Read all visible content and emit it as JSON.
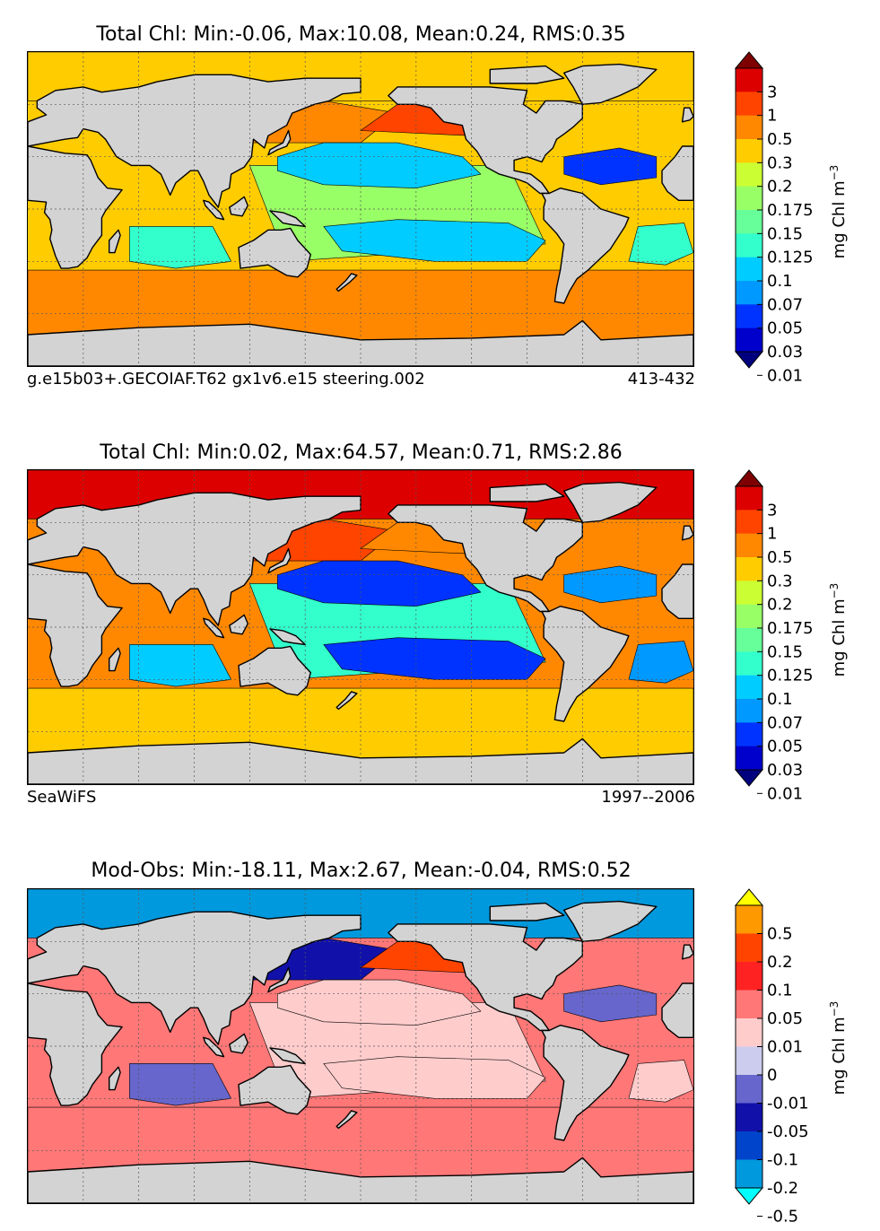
{
  "colors": {
    "land": "#d3d3d3",
    "chl_scale": [
      "#00007f",
      "#0000cc",
      "#0033ff",
      "#0099ff",
      "#00ccff",
      "#33ffcc",
      "#66ff99",
      "#99ff66",
      "#ccff33",
      "#ffcc00",
      "#ff8800",
      "#ff4400",
      "#dd0000",
      "#7f0000"
    ],
    "diff_scale": [
      "#00ffff",
      "#0099dd",
      "#0044cc",
      "#1111aa",
      "#6666cc",
      "#ccccee",
      "#ffcccc",
      "#ff7777",
      "#ff2222",
      "#ff4400",
      "#ff9900",
      "#ffff00"
    ]
  },
  "chart_data": [
    {
      "type": "heatmap",
      "title": "Total Chl: Min:-0.06, Max:10.08, Mean:0.24, RMS:0.35",
      "left_caption": "g.e15b03+.GECOIAF.T62 gx1v6.e15 steering.002",
      "right_caption": "413-432",
      "colorbar_label": "mg Chl m",
      "colorbar_label_exp": "−3",
      "colorbar_ticks": [
        "3",
        "1",
        "0.5",
        "0.3",
        "0.2",
        "0.175",
        "0.15",
        "0.125",
        "0.1",
        "0.07",
        "0.05",
        "0.03",
        "0.01"
      ],
      "field": {
        "nw_pacific": 0.3,
        "ne_pacific": 0.5,
        "n_pacific_gyre": 0.07,
        "equatorial_pacific": 0.15,
        "s_pacific_gyre": 0.07,
        "n_atlantic_gyre": 0.03,
        "s_atlantic_gyre": 0.1,
        "indian_gyre": 0.1,
        "southern_ocean": 0.3,
        "arctic": 0.2
      }
    },
    {
      "type": "heatmap",
      "title": "Total Chl: Min:0.02, Max:64.57, Mean:0.71, RMS:2.86",
      "left_caption": "SeaWiFS",
      "right_caption": "1997--2006",
      "colorbar_label": "mg Chl m",
      "colorbar_label_exp": "−3",
      "colorbar_ticks": [
        "3",
        "1",
        "0.5",
        "0.3",
        "0.2",
        "0.175",
        "0.15",
        "0.125",
        "0.1",
        "0.07",
        "0.05",
        "0.03",
        "0.01"
      ],
      "field": {
        "nw_pacific": 0.5,
        "ne_pacific": 0.3,
        "n_pacific_gyre": 0.03,
        "equatorial_pacific": 0.1,
        "s_pacific_gyre": 0.03,
        "n_atlantic_gyre": 0.05,
        "s_atlantic_gyre": 0.05,
        "indian_gyre": 0.07,
        "southern_ocean": 0.2,
        "arctic": 1
      }
    },
    {
      "type": "heatmap",
      "title": "Mod-Obs: Min:-18.11, Max:2.67, Mean:-0.04, RMS:0.52",
      "left_caption": "",
      "right_caption": "",
      "colorbar_label": "mg Chl m",
      "colorbar_label_exp": "−3",
      "colorbar_ticks": [
        "0.5",
        "0.2",
        "0.1",
        "0.05",
        "0.01",
        "0",
        "-0.01",
        "-0.05",
        "-0.1",
        "-0.2",
        "-0.5"
      ],
      "field": {
        "nw_pacific": -0.05,
        "ne_pacific": 0.2,
        "n_pacific_gyre": 0.01,
        "equatorial_pacific": 0.01,
        "s_pacific_gyre": 0.01,
        "n_atlantic_gyre": -0.01,
        "s_atlantic_gyre": 0.01,
        "indian_gyre": -0.01,
        "southern_ocean": 0.05,
        "arctic": -0.2
      }
    }
  ]
}
